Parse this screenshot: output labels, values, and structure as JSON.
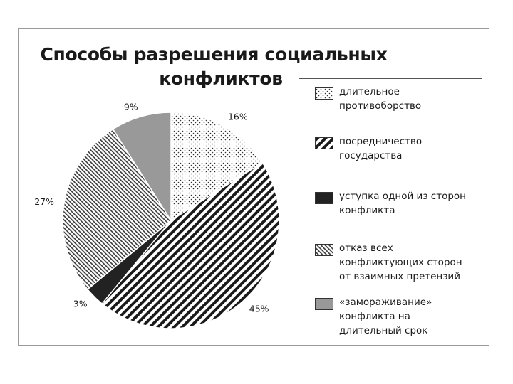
{
  "chart_data": {
    "type": "pie",
    "title_lines": [
      "Способы разрешения социальных",
      "конфликтов"
    ],
    "slices": [
      {
        "label": "длительное\nпротивоборство",
        "value": 16,
        "value_label": "16%",
        "pattern": "dots",
        "color": "#ffffff"
      },
      {
        "label": "посредничество\nгосударства",
        "value": 45,
        "value_label": "45%",
        "pattern": "diagonal-heavy",
        "color": "#222222"
      },
      {
        "label": "уступка одной из сторон\nконфликта",
        "value": 3,
        "value_label": "3%",
        "pattern": "solid",
        "color": "#222222"
      },
      {
        "label": "отказ всех\nконфликтующих сторон\nот взаимных претензий",
        "value": 27,
        "value_label": "27%",
        "pattern": "diagonal-fine",
        "color": "#555555"
      },
      {
        "label": "«замораживание»\nконфликта на\nдлительный срок",
        "value": 9,
        "value_label": "9%",
        "pattern": "solid",
        "color": "#999999"
      }
    ],
    "legend_position": "right"
  }
}
